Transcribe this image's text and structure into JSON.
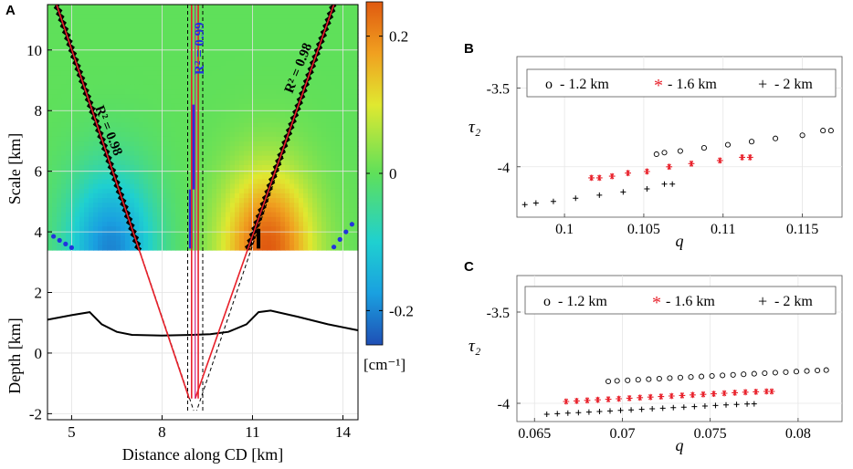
{
  "panels": {
    "a": "A",
    "b": "B",
    "c": "C"
  },
  "chart_data": [
    {
      "panel": "A",
      "type": "heatmap",
      "title": "",
      "xlabel": "Distance along CD [km]",
      "ylabel_top": "Scale [km]",
      "ylabel_bottom": "Depth [km]",
      "xlim": [
        4.2,
        14.5
      ],
      "ylim": [
        -2.2,
        11.5
      ],
      "xticks": [
        5,
        8,
        11,
        14
      ],
      "yticks_scale": [
        4,
        6,
        8,
        10
      ],
      "yticks_depth": [
        -2,
        0,
        2
      ],
      "heatmap_base": 3.4,
      "colorbar": {
        "label": "[cm⁻¹]",
        "range": [
          -0.25,
          0.25
        ],
        "ticks": [
          0.2,
          0,
          -0.2
        ],
        "tick_labels": [
          "0.2",
          "0",
          "-0.2"
        ]
      },
      "heat_sources": [
        {
          "x": 6.3,
          "y": 3.4,
          "sign": -1,
          "amp": 0.2
        },
        {
          "x": 11.5,
          "y": 3.4,
          "sign": 1,
          "amp": 0.25
        }
      ],
      "ridges": [
        {
          "name": "left",
          "from": [
            4.5,
            11.5
          ],
          "to": [
            8.9,
            -1.5
          ],
          "r2": "R² = 0.98"
        },
        {
          "name": "center",
          "from": [
            9.1,
            11.5
          ],
          "to": [
            9.1,
            -1.5
          ],
          "r2": "R² = 0.99"
        },
        {
          "name": "right",
          "from": [
            13.7,
            11.5
          ],
          "to": [
            9.1,
            -1.5
          ],
          "r2": "R² = 0.98"
        }
      ],
      "blue_points": [
        {
          "x": 4.4,
          "y": 3.85
        },
        {
          "x": 4.6,
          "y": 3.72
        },
        {
          "x": 4.8,
          "y": 3.6
        },
        {
          "x": 5.0,
          "y": 3.48
        },
        {
          "x": 13.7,
          "y": 3.5
        },
        {
          "x": 13.9,
          "y": 3.75
        },
        {
          "x": 14.1,
          "y": 4.0
        },
        {
          "x": 14.3,
          "y": 4.25
        }
      ],
      "surface_profile": {
        "x": [
          4.2,
          5.0,
          5.6,
          6.0,
          6.5,
          7.0,
          8.0,
          9.0,
          9.6,
          10.2,
          10.8,
          11.2,
          11.6,
          12.5,
          13.5,
          14.5
        ],
        "y": [
          1.1,
          1.25,
          1.35,
          0.95,
          0.7,
          0.6,
          0.58,
          0.6,
          0.62,
          0.7,
          0.95,
          1.35,
          1.4,
          1.2,
          0.95,
          0.75
        ]
      },
      "source_point": {
        "x": 9.1,
        "y": -1.5
      }
    },
    {
      "panel": "B",
      "type": "scatter",
      "xlabel": "q",
      "ylabel": "τ₂",
      "xlim": [
        0.097,
        0.1175
      ],
      "ylim": [
        -4.32,
        -3.3
      ],
      "xticks": [
        0.1,
        0.105,
        0.11,
        0.115
      ],
      "xtick_labels": [
        "0.1",
        "0.105",
        "0.11",
        "0.115"
      ],
      "yticks": [
        -3.5,
        -4
      ],
      "ytick_labels": [
        "-3.5",
        "-4"
      ],
      "legend": [
        {
          "marker": "o",
          "label": "- 1.2 km"
        },
        {
          "marker": "*",
          "label": "- 1.6 km"
        },
        {
          "marker": "+",
          "label": "- 2 km"
        }
      ],
      "series": [
        {
          "name": "- 1.2 km",
          "marker": "o",
          "color": "#000000",
          "x": [
            0.1058,
            0.1063,
            0.1073,
            0.1088,
            0.1103,
            0.1118,
            0.1133,
            0.115,
            0.1163,
            0.1168
          ],
          "y": [
            -3.92,
            -3.91,
            -3.9,
            -3.88,
            -3.86,
            -3.84,
            -3.82,
            -3.8,
            -3.77,
            -3.77
          ]
        },
        {
          "name": "- 1.6 km",
          "marker": "*",
          "color": "#e8202a",
          "x": [
            0.1017,
            0.1022,
            0.103,
            0.104,
            0.1052,
            0.1066,
            0.108,
            0.1098,
            0.1112,
            0.1117
          ],
          "y": [
            -4.07,
            -4.07,
            -4.06,
            -4.04,
            -4.03,
            -4.0,
            -3.98,
            -3.96,
            -3.94,
            -3.94
          ]
        },
        {
          "name": "- 2 km",
          "marker": "+",
          "color": "#000000",
          "x": [
            0.0975,
            0.0982,
            0.0993,
            0.1007,
            0.1022,
            0.1037,
            0.1052,
            0.1063,
            0.1068
          ],
          "y": [
            -4.24,
            -4.23,
            -4.22,
            -4.2,
            -4.18,
            -4.16,
            -4.14,
            -4.11,
            -4.11
          ]
        }
      ]
    },
    {
      "panel": "C",
      "type": "scatter",
      "xlabel": "q",
      "ylabel": "τ₂",
      "xlim": [
        0.064,
        0.0825
      ],
      "ylim": [
        -4.1,
        -3.3
      ],
      "xticks": [
        0.065,
        0.07,
        0.075,
        0.08
      ],
      "xtick_labels": [
        "0.065",
        "0.07",
        "0.075",
        "0.08"
      ],
      "yticks": [
        -3.5,
        -4
      ],
      "ytick_labels": [
        "-3.5",
        "-4"
      ],
      "legend": [
        {
          "marker": "o",
          "label": "- 1.2 km"
        },
        {
          "marker": "*",
          "label": "- 1.6 km"
        },
        {
          "marker": "+",
          "label": "- 2 km"
        }
      ],
      "series": [
        {
          "name": "- 1.2 km",
          "marker": "o",
          "color": "#000000",
          "x": [
            0.0692,
            0.0697,
            0.0703,
            0.0709,
            0.0715,
            0.0721,
            0.0727,
            0.0733,
            0.0739,
            0.0745,
            0.0751,
            0.0757,
            0.0763,
            0.0769,
            0.0775,
            0.0781,
            0.0787,
            0.0793,
            0.0799,
            0.0805,
            0.0811,
            0.0816
          ],
          "y": [
            -3.88,
            -3.877,
            -3.874,
            -3.871,
            -3.868,
            -3.865,
            -3.862,
            -3.859,
            -3.856,
            -3.853,
            -3.85,
            -3.847,
            -3.844,
            -3.841,
            -3.838,
            -3.835,
            -3.832,
            -3.829,
            -3.826,
            -3.823,
            -3.82,
            -3.818
          ]
        },
        {
          "name": "- 1.6 km",
          "marker": "*",
          "color": "#e8202a",
          "x": [
            0.0668,
            0.0674,
            0.068,
            0.0686,
            0.0692,
            0.0698,
            0.0704,
            0.071,
            0.0716,
            0.0722,
            0.0728,
            0.0734,
            0.074,
            0.0746,
            0.0752,
            0.0758,
            0.0764,
            0.077,
            0.0776,
            0.0782,
            0.0785
          ],
          "y": [
            -3.99,
            -3.987,
            -3.984,
            -3.981,
            -3.978,
            -3.975,
            -3.972,
            -3.969,
            -3.966,
            -3.963,
            -3.96,
            -3.957,
            -3.954,
            -3.951,
            -3.948,
            -3.945,
            -3.942,
            -3.939,
            -3.937,
            -3.935,
            -3.935
          ]
        },
        {
          "name": "- 2 km",
          "marker": "+",
          "color": "#000000",
          "x": [
            0.0657,
            0.0663,
            0.0669,
            0.0675,
            0.0681,
            0.0687,
            0.0693,
            0.0699,
            0.0705,
            0.0711,
            0.0717,
            0.0723,
            0.0729,
            0.0735,
            0.0741,
            0.0747,
            0.0753,
            0.0759,
            0.0765,
            0.0771,
            0.0775
          ],
          "y": [
            -4.06,
            -4.057,
            -4.054,
            -4.051,
            -4.048,
            -4.045,
            -4.042,
            -4.039,
            -4.036,
            -4.033,
            -4.03,
            -4.027,
            -4.024,
            -4.021,
            -4.018,
            -4.015,
            -4.012,
            -4.009,
            -4.006,
            -4.004,
            -4.003
          ]
        }
      ]
    }
  ]
}
